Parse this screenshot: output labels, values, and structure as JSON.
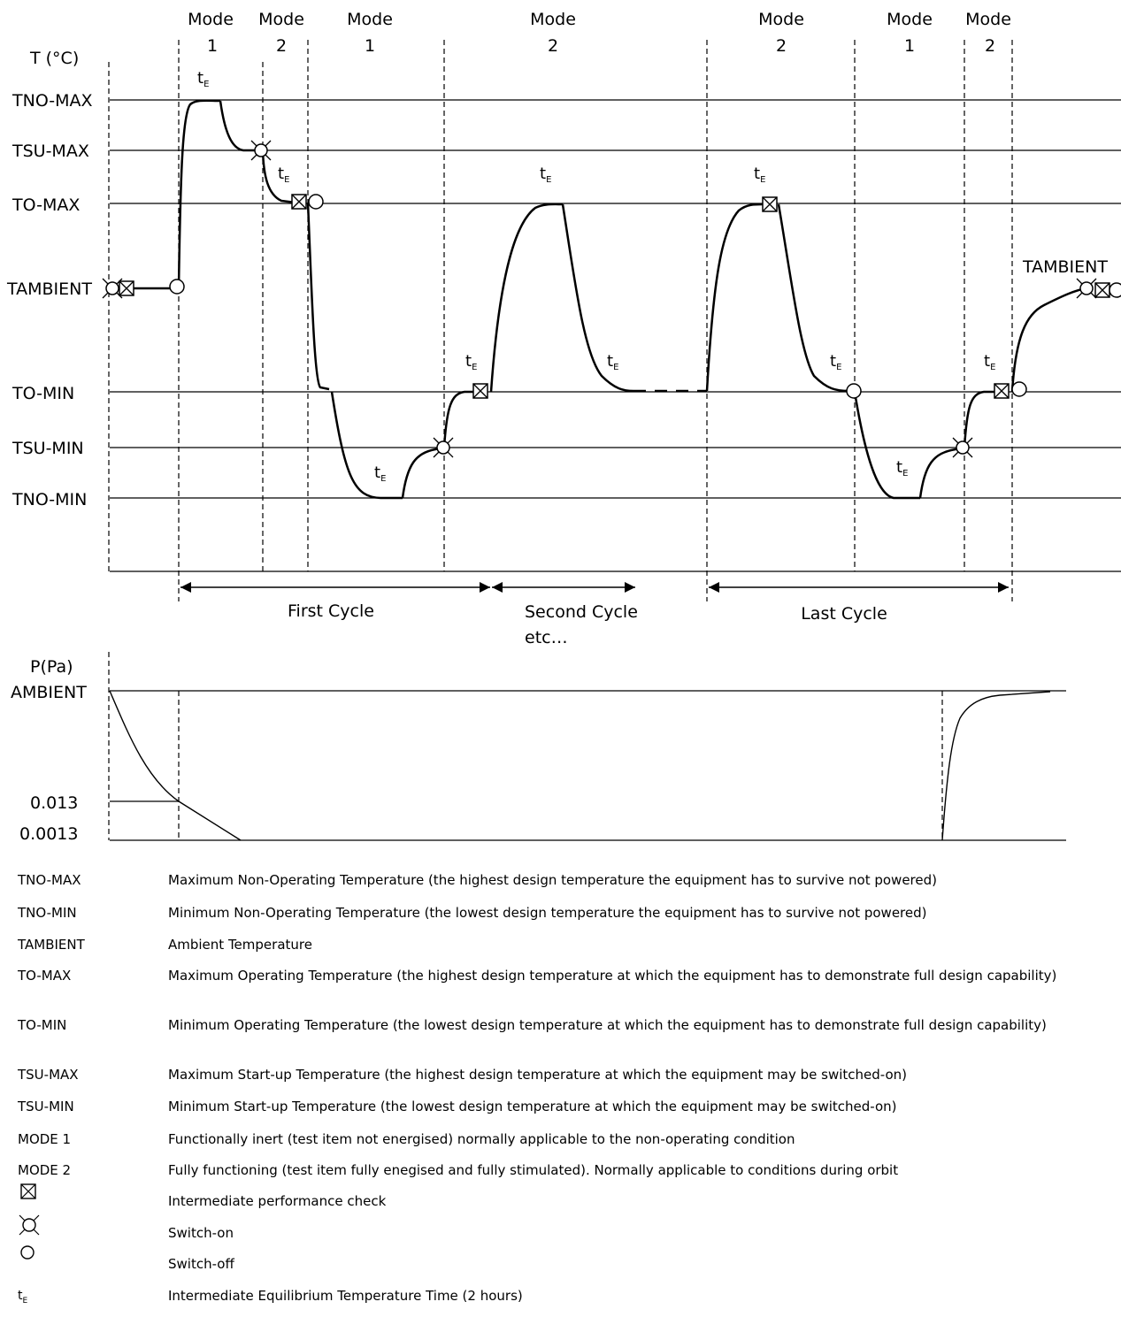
{
  "temperature_axis": {
    "title": "T (°C)",
    "levels": [
      "TNO-MAX",
      "TSU-MAX",
      "TO-MAX",
      "TAMBIENT",
      "TO-MIN",
      "TSU-MIN",
      "TNO-MIN"
    ],
    "right_label": "TAMBIENT"
  },
  "modes": [
    {
      "word": "Mode",
      "num": "1"
    },
    {
      "word": "Mode",
      "num": "2"
    },
    {
      "word": "Mode",
      "num": "1"
    },
    {
      "word": "Mode",
      "num": "2"
    },
    {
      "word": "Mode",
      "num": "2"
    },
    {
      "word": "Mode",
      "num": "1"
    },
    {
      "word": "Mode",
      "num": "2"
    }
  ],
  "dwell_label": {
    "t": "t",
    "sub": "E"
  },
  "cycles": {
    "first": "First Cycle",
    "second": "Second Cycle",
    "second_cont": "etc…",
    "last": "Last Cycle"
  },
  "pressure_axis": {
    "title": "P(Pa)",
    "levels": [
      "AMBIENT",
      "0.013",
      "0.0013"
    ]
  },
  "legend": [
    {
      "term": "TNO-MAX",
      "definition": "Maximum Non-Operating Temperature (the highest design temperature the equipment has to survive not powered)"
    },
    {
      "term": "TNO-MIN",
      "definition": "Minimum Non-Operating Temperature (the lowest design temperature the equipment has to survive not powered)"
    },
    {
      "term": "TAMBIENT",
      "definition": "Ambient Temperature"
    },
    {
      "term": "TO-MAX",
      "definition": "Maximum Operating Temperature (the highest design temperature at which the equipment has to demonstrate full design capability)"
    },
    {
      "term": "TO-MIN",
      "definition": "Minimum Operating Temperature (the lowest design temperature at which the equipment has to demonstrate full design capability)"
    },
    {
      "term": "TSU-MAX",
      "definition": "Maximum Start-up Temperature (the highest design temperature at which the equipment may be switched-on)"
    },
    {
      "term": "TSU-MIN",
      "definition": "Minimum Start-up Temperature (the lowest design temperature at which the equipment may be switched-on)"
    },
    {
      "term": "MODE 1",
      "definition": "Functionally inert (test item not energised) normally applicable to the non-operating condition"
    },
    {
      "term": "MODE 2",
      "definition": "Fully functioning (test item fully enegised and fully stimulated). Normally applicable to conditions during orbit"
    }
  ],
  "symbol_legend": [
    {
      "icon": "performance-check-icon",
      "definition": "Intermediate performance check"
    },
    {
      "icon": "switch-on-icon",
      "definition": "Switch-on"
    },
    {
      "icon": "switch-off-icon",
      "definition": "Switch-off"
    }
  ],
  "te_legend": {
    "t": "t",
    "sub": "E",
    "definition": "Intermediate Equilibrium Temperature Time (2 hours)"
  }
}
